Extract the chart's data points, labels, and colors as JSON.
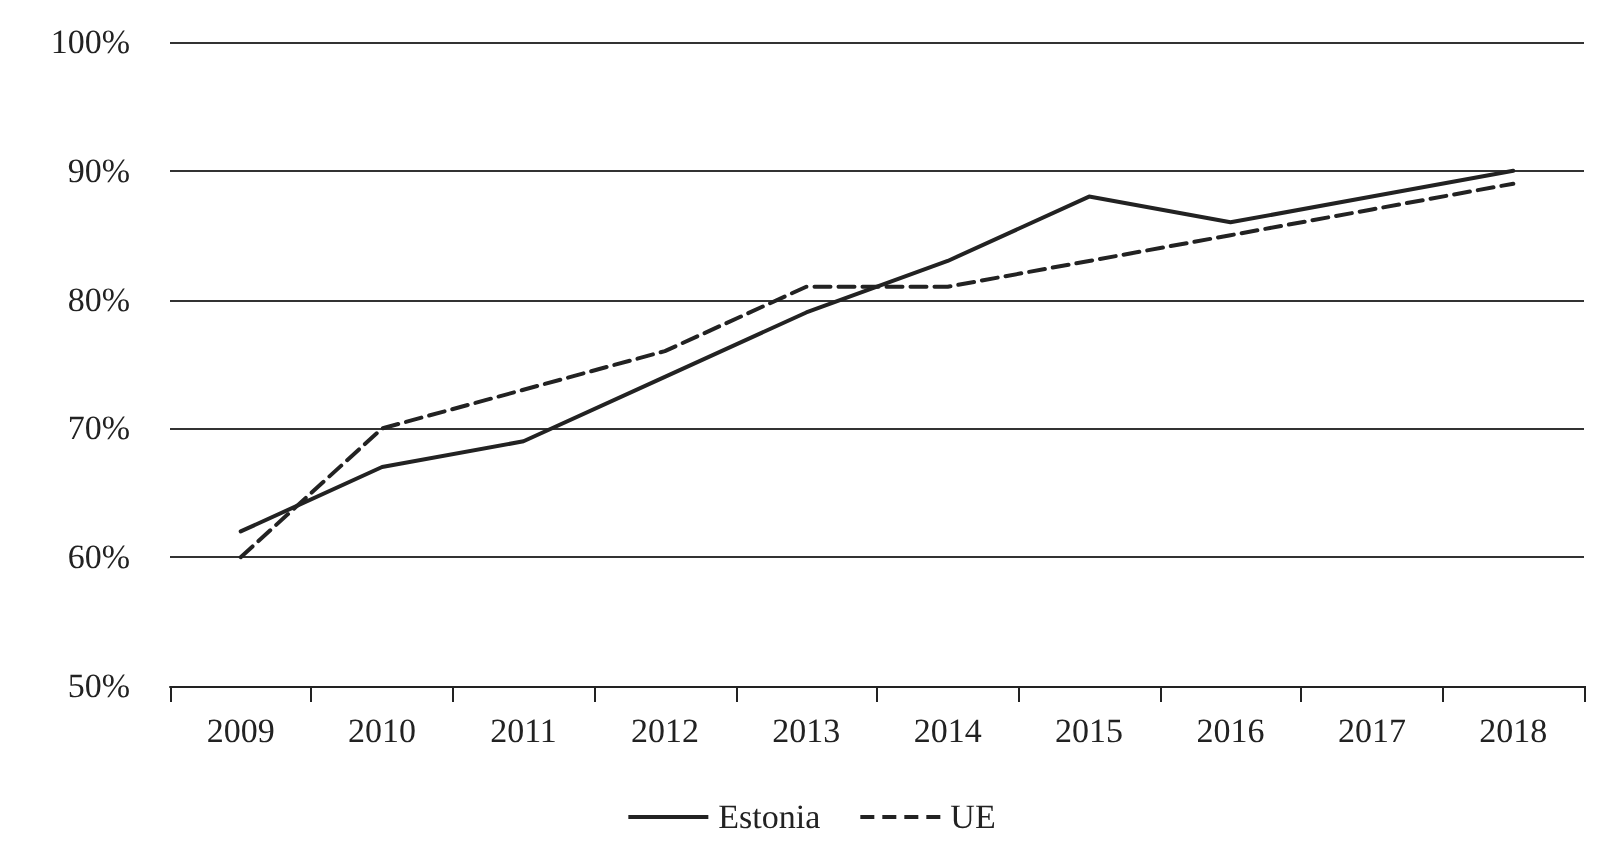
{
  "chart_data": {
    "type": "line",
    "categories": [
      "2009",
      "2010",
      "2011",
      "2012",
      "2013",
      "2014",
      "2015",
      "2016",
      "2017",
      "2018"
    ],
    "series": [
      {
        "name": "Estonia",
        "color": "#222222",
        "line_style": "solid",
        "values": [
          62,
          67,
          69,
          74,
          79,
          83,
          88,
          86,
          88,
          90
        ]
      },
      {
        "name": "UE",
        "color": "#222222",
        "line_style": "dashed",
        "values": [
          60,
          70,
          73,
          76,
          81,
          81,
          83,
          85,
          87,
          89
        ]
      }
    ],
    "ylim": [
      50,
      100
    ],
    "yticks": [
      {
        "value": 50,
        "label": "50%"
      },
      {
        "value": 60,
        "label": "60%"
      },
      {
        "value": 70,
        "label": "70%"
      },
      {
        "value": 80,
        "label": "80%"
      },
      {
        "value": 90,
        "label": "90%"
      },
      {
        "value": 100,
        "label": "100%"
      }
    ],
    "grid": "y",
    "legend": "bottom",
    "marker": "none"
  }
}
